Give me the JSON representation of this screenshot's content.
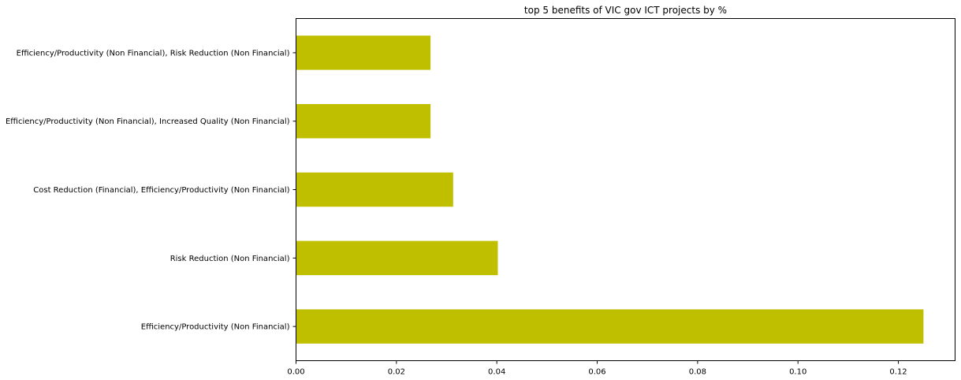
{
  "chart_data": {
    "type": "bar",
    "orientation": "horizontal",
    "title": "top 5 benefits of VIC gov ICT projects by %",
    "xlabel": "",
    "ylabel": "",
    "categories": [
      "Efficiency/Productivity (Non Financial)",
      "Risk Reduction (Non Financial)",
      "Cost Reduction (Financial), Efficiency/Productivity (Non Financial)",
      "Efficiency/Productivity (Non Financial), Increased Quality (Non Financial)",
      "Efficiency/Productivity (Non Financial), Risk Reduction (Non Financial)"
    ],
    "values": [
      0.125,
      0.0402,
      0.0313,
      0.0268,
      0.0268
    ],
    "xlim": [
      0,
      0.1313
    ],
    "xticks": [
      0.0,
      0.02,
      0.04,
      0.06,
      0.08,
      0.1,
      0.12
    ],
    "xtick_labels": [
      "0.00",
      "0.02",
      "0.04",
      "0.06",
      "0.08",
      "0.10",
      "0.12"
    ],
    "bar_color": "#bfbf00",
    "grid": false,
    "legend": "none"
  }
}
